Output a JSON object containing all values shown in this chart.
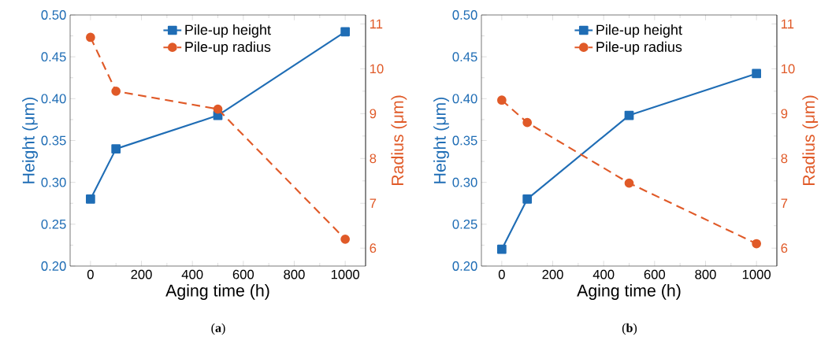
{
  "chart_data": [
    {
      "type": "line",
      "x": [
        0,
        100,
        500,
        1000
      ],
      "xlabel": "Aging time (h)",
      "ylabel": "Height (μm)",
      "y2label": "Radius (μm)",
      "xlim": [
        -80,
        1080
      ],
      "xticks": [
        0,
        200,
        400,
        600,
        800,
        1000
      ],
      "ylim": [
        0.2,
        0.5
      ],
      "yticks": [
        {
          "value": 0.2,
          "label": "0.20"
        },
        {
          "value": 0.25,
          "label": "0.25"
        },
        {
          "value": 0.3,
          "label": "0.30"
        },
        {
          "value": 0.35,
          "label": "0.35"
        },
        {
          "value": 0.4,
          "label": "0.40"
        },
        {
          "value": 0.45,
          "label": "0.45"
        },
        {
          "value": 0.5,
          "label": "0.50"
        }
      ],
      "y2lim": [
        5.6,
        11.2
      ],
      "y2ticks": [
        6,
        7,
        8,
        9,
        10,
        11
      ],
      "legend": "top",
      "series": [
        {
          "name": "Pile-up height",
          "color": "#1f6db5",
          "values": [
            0.28,
            0.34,
            0.38,
            0.48
          ],
          "marker": "square",
          "line_style": "solid"
        },
        {
          "name": "Pile-up radius",
          "color": "#e05a28",
          "values": [
            10.7,
            9.5,
            9.1,
            6.2
          ],
          "marker": "circle",
          "line_style": "dashed",
          "axis": "y2"
        }
      ],
      "annotations": [
        "(**a**)"
      ]
    },
    {
      "type": "line",
      "x": [
        0,
        100,
        500,
        1000
      ],
      "xlabel": "Aging time (h)",
      "ylabel": "Height (μm)",
      "y2label": "Radius (μm)",
      "xlim": [
        -80,
        1080
      ],
      "xticks": [
        0,
        200,
        400,
        600,
        800,
        1000
      ],
      "ylim": [
        0.2,
        0.5
      ],
      "yticks": [
        {
          "value": 0.2,
          "label": "0.20"
        },
        {
          "value": 0.25,
          "label": "0.25"
        },
        {
          "value": 0.3,
          "label": "0.30"
        },
        {
          "value": 0.35,
          "label": "0.35"
        },
        {
          "value": 0.4,
          "label": "0.40"
        },
        {
          "value": 0.45,
          "label": "0.45"
        },
        {
          "value": 0.5,
          "label": "0.50"
        }
      ],
      "y2lim": [
        5.6,
        11.2
      ],
      "y2ticks": [
        6,
        7,
        8,
        9,
        10,
        11
      ],
      "legend": "top",
      "series": [
        {
          "name": "Pile-up height",
          "color": "#1f6db5",
          "values": [
            0.22,
            0.28,
            0.38,
            0.43
          ],
          "marker": "square",
          "line_style": "solid"
        },
        {
          "name": "Pile-up radius",
          "color": "#e05a28",
          "values": [
            9.3,
            8.8,
            7.45,
            6.1
          ],
          "marker": "circle",
          "line_style": "dashed",
          "axis": "y2"
        }
      ],
      "annotations": [
        "(**b**)"
      ]
    }
  ]
}
